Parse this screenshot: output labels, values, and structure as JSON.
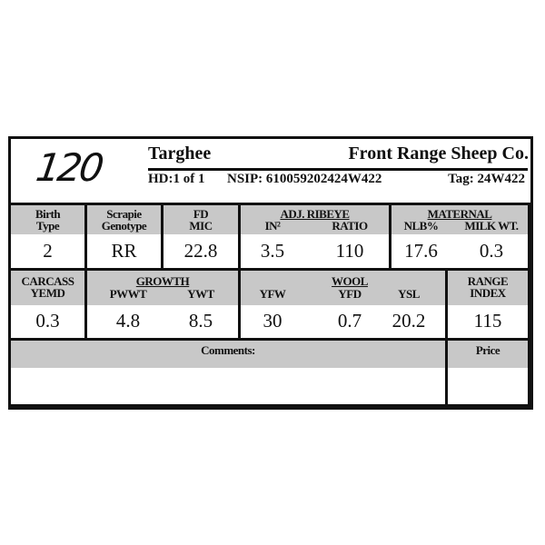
{
  "lot_number": "120",
  "breed": "Targhee",
  "breeder": "Front Range Sheep Co.",
  "hd": "HD:1 of 1",
  "nsip": "NSIP: 610059202424W422",
  "tag": "Tag: 24W422",
  "row1": {
    "birth_type": {
      "label1": "Birth",
      "label2": "Type",
      "value": "2"
    },
    "scrapie": {
      "label1": "Scrapie",
      "label2": "Genotype",
      "value": "RR"
    },
    "fd_mic": {
      "label1": "FD",
      "label2": "MIC",
      "value": "22.8"
    },
    "ribeye": {
      "group": "ADJ. RIBEYE",
      "in2_label": "IN²",
      "ratio_label": "RATIO",
      "in2": "3.5",
      "ratio": "110"
    },
    "maternal": {
      "group": "MATERNAL",
      "nlb_label": "NLB%",
      "milk_label": "MILK WT.",
      "nlb": "17.6",
      "milk": "0.3"
    }
  },
  "row2": {
    "carcass": {
      "label1": "CARCASS",
      "label2": "YEMD",
      "value": "0.3"
    },
    "growth": {
      "group": "GROWTH",
      "pwwt_label": "PWWT",
      "ywt_label": "YWT",
      "pwwt": "4.8",
      "ywt": "8.5"
    },
    "wool": {
      "group": "WOOL",
      "yfw_label": "YFW",
      "yfd_label": "YFD",
      "ysl_label": "YSL",
      "yfw": "30",
      "yfd": "0.7",
      "ysl": "20.2"
    },
    "range": {
      "label1": "RANGE",
      "label2": "INDEX",
      "value": "115"
    }
  },
  "comments_label": "Comments:",
  "price_label": "Price",
  "colors": {
    "header_gray": "#c8c8c8",
    "border": "#111111"
  }
}
